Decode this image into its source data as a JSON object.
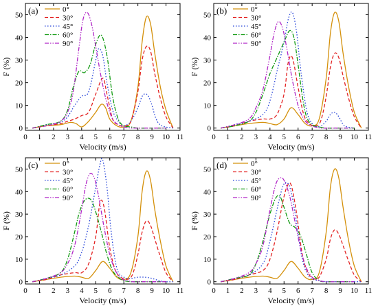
{
  "shared": {
    "xlabel": "Velocity (m/s)",
    "ylabel": "F (%)",
    "xlim": [
      0,
      11
    ],
    "ylim": [
      -1,
      55
    ],
    "xticks": [
      "0",
      "1",
      "2",
      "3",
      "4",
      "5",
      "6",
      "7",
      "8",
      "9",
      "10",
      "11"
    ],
    "yticks": [
      "0",
      "10",
      "20",
      "30",
      "40",
      "50"
    ],
    "legend_placement": "top-left",
    "colors": {
      "0°": "#d4900a",
      "30°": "#e32222",
      "45°": "#2240d8",
      "60°": "#109a10",
      "90°": "#b026c6"
    },
    "dashes": {
      "0°": "",
      "30°": "5,3",
      "45°": "1.5,2.5",
      "60°": "6,2,1.5,2",
      "90°": "6,2,1.5,2,1.5,2"
    }
  },
  "chart_data": [
    {
      "panel_label": "(a)",
      "type": "line",
      "series": [
        {
          "name": "0°",
          "x": [
            0.5,
            1.5,
            2.5,
            3.2,
            3.6,
            4.0,
            4.5,
            5.0,
            5.4,
            5.7,
            6.0,
            6.5,
            7.0,
            7.5,
            8.0,
            8.3,
            8.6,
            8.9,
            9.2,
            9.6,
            10.0,
            10.5
          ],
          "y": [
            0,
            1,
            1.5,
            2.5,
            2,
            0.5,
            3,
            7,
            10.5,
            9,
            4,
            1,
            0.5,
            3,
            18,
            38,
            49,
            46,
            33,
            18,
            8,
            0
          ]
        },
        {
          "name": "30°",
          "x": [
            0.5,
            1.5,
            2.5,
            3.0,
            3.5,
            4.0,
            4.5,
            5.0,
            5.5,
            5.8,
            6.2,
            6.6,
            7.0,
            7.5,
            8.0,
            8.3,
            8.6,
            8.9,
            9.2,
            9.6,
            10.0,
            10.5
          ],
          "y": [
            0,
            1,
            2,
            3,
            4,
            5.5,
            7,
            15,
            22,
            15,
            4,
            1.5,
            1,
            3,
            16,
            30,
            36,
            34,
            24,
            13,
            5,
            0
          ]
        },
        {
          "name": "45°",
          "x": [
            0.5,
            1.5,
            2.5,
            3.0,
            3.5,
            4.0,
            4.5,
            5.0,
            5.2,
            5.5,
            5.8,
            6.2,
            6.6,
            7.0,
            7.5,
            8.0,
            8.3,
            8.6,
            8.9,
            9.3,
            9.7,
            10.5
          ],
          "y": [
            0,
            1.5,
            2.5,
            5,
            10,
            14,
            16,
            30,
            35,
            32,
            20,
            8,
            3,
            1,
            3,
            9,
            14,
            15,
            12,
            4,
            1,
            0
          ]
        },
        {
          "name": "60°",
          "x": [
            0.5,
            1.5,
            2.5,
            3.0,
            3.4,
            3.8,
            4.2,
            4.6,
            5.0,
            5.4,
            5.8,
            6.2,
            6.6,
            7.0,
            7.5,
            8.0,
            9.0,
            10.0
          ],
          "y": [
            0,
            1.5,
            3,
            8,
            18,
            25,
            24.5,
            28,
            37,
            41,
            32,
            14,
            4,
            1,
            0.5,
            0,
            0,
            0
          ]
        },
        {
          "name": "90°",
          "x": [
            0.5,
            1.5,
            2.5,
            3.0,
            3.4,
            3.8,
            4.1,
            4.4,
            4.7,
            5.0,
            5.4,
            5.8,
            6.2,
            6.6,
            7.0,
            7.5,
            8.0,
            9.0,
            10.0
          ],
          "y": [
            0,
            1,
            3,
            7,
            16,
            35,
            48,
            51,
            46,
            36,
            22,
            11,
            4,
            1.5,
            0.5,
            0,
            0,
            0,
            0
          ]
        }
      ]
    },
    {
      "panel_label": "(b)",
      "type": "line",
      "series": [
        {
          "name": "0°",
          "x": [
            0.5,
            1.5,
            2.5,
            3.5,
            4.0,
            4.5,
            5.0,
            5.5,
            6.0,
            6.5,
            7.0,
            7.5,
            8.0,
            8.3,
            8.6,
            8.9,
            9.2,
            9.6,
            10.0,
            10.5
          ],
          "y": [
            0,
            1,
            2,
            2.5,
            2,
            1.5,
            4,
            9,
            6,
            2,
            1,
            4,
            22,
            42,
            51,
            47,
            33,
            18,
            7,
            0
          ]
        },
        {
          "name": "30°",
          "x": [
            0.5,
            1.5,
            2.5,
            3.5,
            4.0,
            4.5,
            5.0,
            5.3,
            5.6,
            6.0,
            6.4,
            6.8,
            7.2,
            7.6,
            8.0,
            8.3,
            8.6,
            8.9,
            9.2,
            9.6,
            10.0,
            10.5
          ],
          "y": [
            0,
            1,
            3,
            4,
            4,
            6,
            15,
            29,
            31,
            18,
            6,
            2,
            1,
            3,
            14,
            27,
            33,
            31,
            23,
            13,
            5,
            0
          ]
        },
        {
          "name": "45°",
          "x": [
            0.5,
            1.5,
            2.5,
            3.5,
            4.0,
            4.5,
            5.0,
            5.3,
            5.6,
            5.9,
            6.2,
            6.6,
            7.0,
            7.5,
            8.0,
            8.3,
            8.6,
            8.9,
            9.3,
            10.0
          ],
          "y": [
            0,
            1.5,
            3,
            6,
            12,
            25,
            38,
            48,
            51,
            42,
            25,
            8,
            2,
            0.5,
            3,
            6,
            7,
            5,
            1,
            0
          ]
        },
        {
          "name": "60°",
          "x": [
            0.5,
            1.5,
            2.5,
            3.0,
            3.5,
            4.0,
            4.5,
            5.0,
            5.4,
            5.7,
            6.0,
            6.3,
            6.6,
            7.0,
            7.5,
            8.0,
            9.0,
            10.0
          ],
          "y": [
            0,
            1,
            3,
            7,
            15,
            24,
            31,
            38,
            43,
            40,
            28,
            14,
            5,
            1.5,
            0.5,
            0,
            0,
            0
          ]
        },
        {
          "name": "90°",
          "x": [
            0.5,
            1.5,
            2.5,
            3.0,
            3.5,
            4.0,
            4.3,
            4.6,
            4.9,
            5.2,
            5.6,
            6.0,
            6.4,
            6.8,
            7.2,
            7.6,
            8.0,
            9.0,
            10.0
          ],
          "y": [
            0,
            1.5,
            4,
            9,
            17,
            32,
            42,
            47,
            44,
            35,
            21,
            10,
            4,
            1.5,
            0.5,
            0,
            0,
            0,
            0
          ]
        }
      ]
    },
    {
      "panel_label": "(c)",
      "type": "line",
      "series": [
        {
          "name": "0°",
          "x": [
            0.5,
            1.5,
            2.5,
            3.5,
            4.0,
            4.5,
            5.0,
            5.5,
            6.0,
            6.5,
            7.0,
            7.5,
            8.0,
            8.3,
            8.6,
            8.9,
            9.2,
            9.6,
            10.0,
            10.5
          ],
          "y": [
            0,
            1,
            2,
            2.5,
            2,
            1.5,
            5,
            9,
            6,
            2,
            1,
            4,
            20,
            40,
            49,
            45,
            32,
            18,
            7,
            0
          ]
        },
        {
          "name": "30°",
          "x": [
            0.5,
            1.5,
            2.5,
            3.5,
            4.0,
            4.5,
            5.0,
            5.3,
            5.6,
            6.0,
            6.4,
            6.8,
            7.2,
            7.6,
            8.0,
            8.3,
            8.6,
            8.9,
            9.2,
            9.6,
            10.0,
            10.5
          ],
          "y": [
            0,
            1,
            3,
            4,
            4,
            8,
            20,
            35,
            33,
            15,
            5,
            2,
            1,
            3,
            12,
            22,
            27,
            25,
            19,
            11,
            4,
            0
          ]
        },
        {
          "name": "45°",
          "x": [
            0.5,
            1.5,
            2.5,
            3.5,
            4.0,
            4.5,
            5.0,
            5.3,
            5.5,
            5.8,
            6.1,
            6.5,
            7.0,
            7.5,
            8.0,
            8.5,
            9.0,
            9.5,
            10.0,
            10.5
          ],
          "y": [
            0,
            1.5,
            3,
            7,
            13,
            25,
            42,
            52,
            54,
            42,
            22,
            6,
            2,
            1.5,
            2,
            2,
            1.5,
            0.5,
            0,
            0
          ]
        },
        {
          "name": "60°",
          "x": [
            0.5,
            1.5,
            2.5,
            3.0,
            3.5,
            3.8,
            4.1,
            4.4,
            4.7,
            5.0,
            5.4,
            5.8,
            6.2,
            6.6,
            7.0,
            7.5,
            8.0,
            9.0,
            10.0
          ],
          "y": [
            0,
            1.5,
            4,
            10,
            22,
            30,
            35,
            37,
            36,
            31,
            22,
            12,
            5,
            2,
            0.5,
            0,
            0,
            0,
            0
          ]
        },
        {
          "name": "90°",
          "x": [
            0.5,
            1.5,
            2.5,
            3.0,
            3.5,
            4.0,
            4.3,
            4.6,
            4.9,
            5.2,
            5.6,
            6.0,
            6.4,
            6.8,
            7.2,
            7.6,
            8.0,
            9.0,
            10.0
          ],
          "y": [
            0,
            1.5,
            4,
            8,
            16,
            32,
            43,
            48,
            46,
            38,
            24,
            12,
            5,
            1.5,
            0.5,
            0,
            0,
            0,
            0
          ]
        }
      ]
    },
    {
      "panel_label": "(d)",
      "type": "line",
      "series": [
        {
          "name": "0°",
          "x": [
            0.5,
            1.5,
            2.5,
            3.5,
            4.0,
            4.5,
            5.0,
            5.5,
            6.0,
            6.5,
            7.0,
            7.5,
            8.0,
            8.3,
            8.6,
            8.9,
            9.2,
            9.6,
            10.0,
            10.5
          ],
          "y": [
            0,
            1,
            2,
            2.5,
            2,
            1.5,
            5,
            9,
            6,
            2,
            1,
            4,
            22,
            42,
            50,
            46,
            33,
            18,
            7,
            0
          ]
        },
        {
          "name": "30°",
          "x": [
            0.5,
            1.5,
            2.5,
            3.5,
            4.0,
            4.5,
            4.9,
            5.2,
            5.5,
            5.9,
            6.3,
            6.7,
            7.1,
            7.5,
            8.0,
            8.3,
            8.6,
            8.9,
            9.2,
            9.6,
            10.0,
            10.5
          ],
          "y": [
            0,
            1,
            3,
            5,
            10,
            22,
            35,
            42,
            43,
            30,
            12,
            4,
            1.5,
            2,
            10,
            19,
            23,
            21,
            16,
            9,
            3,
            0
          ]
        },
        {
          "name": "45°",
          "x": [
            0.5,
            1.5,
            2.5,
            3.5,
            4.0,
            4.5,
            4.9,
            5.2,
            5.5,
            5.9,
            6.3,
            6.7,
            7.1,
            7.5,
            8.0,
            9.0,
            10.0,
            10.5
          ],
          "y": [
            0,
            1.5,
            3,
            8,
            18,
            32,
            42,
            44,
            40,
            26,
            10,
            3,
            1,
            0.5,
            0,
            0,
            0,
            0
          ]
        },
        {
          "name": "60°",
          "x": [
            0.5,
            1.5,
            2.5,
            3.0,
            3.5,
            4.0,
            4.4,
            4.7,
            5.0,
            5.4,
            5.8,
            6.2,
            6.6,
            7.0,
            7.5,
            8.0,
            9.0,
            10.0
          ],
          "y": [
            0,
            1.5,
            3,
            8,
            18,
            30,
            37,
            38,
            33,
            26,
            24,
            20,
            12,
            4,
            0.5,
            0,
            0,
            0
          ]
        },
        {
          "name": "90°",
          "x": [
            0.5,
            1.5,
            2.5,
            3.0,
            3.5,
            4.0,
            4.4,
            4.7,
            5.0,
            5.4,
            5.8,
            6.2,
            6.6,
            7.0,
            7.5,
            8.0,
            9.0,
            10.0
          ],
          "y": [
            0,
            1.5,
            4,
            8,
            16,
            32,
            43,
            46,
            45,
            38,
            26,
            14,
            6,
            2,
            0.5,
            0,
            0,
            0
          ]
        }
      ]
    }
  ]
}
